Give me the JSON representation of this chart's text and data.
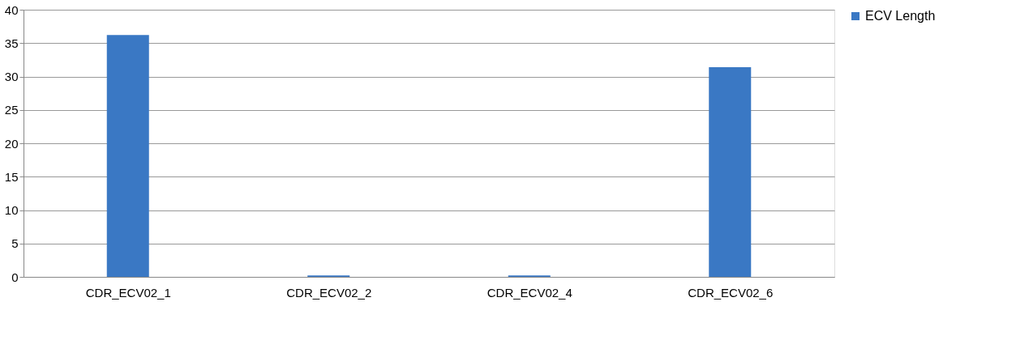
{
  "chart_data": {
    "type": "bar",
    "categories": [
      "CDR_ECV02_1",
      "CDR_ECV02_2",
      "CDR_ECV02_4",
      "CDR_ECV02_6"
    ],
    "series": [
      {
        "name": "ECV Length",
        "color": "#3a78c4",
        "values": [
          36.2,
          0.2,
          0.2,
          31.4
        ]
      }
    ],
    "ylim": [
      0,
      40
    ],
    "yticks": [
      0,
      5,
      10,
      15,
      20,
      25,
      30,
      35,
      40
    ],
    "grid": "y",
    "legend": "right"
  }
}
